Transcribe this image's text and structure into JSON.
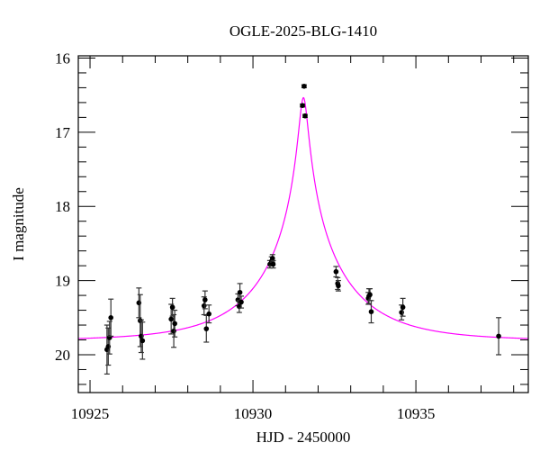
{
  "chart_data": {
    "type": "scatter",
    "title": "OGLE-2025-BLG-1410",
    "xlabel": "HJD - 2450000",
    "ylabel": "I magnitude",
    "xlim": [
      10924.64,
      10938.45
    ],
    "ylim": [
      20.51,
      15.97
    ],
    "y_inverted": true,
    "x_ticks": [
      10925,
      10930,
      10935
    ],
    "x_tick_labels": [
      "10925",
      "10930",
      "10935"
    ],
    "x_minor_step": 1,
    "y_ticks": [
      16,
      17,
      18,
      19,
      20
    ],
    "y_tick_labels": [
      "16",
      "17",
      "18",
      "19",
      "20"
    ],
    "y_minor_step": 0.2,
    "grid": false,
    "colors": {
      "data": "#000000",
      "model": "#ff00ff"
    },
    "points": [
      {
        "x": 10925.52,
        "y": 19.93,
        "err": 0.33
      },
      {
        "x": 10925.56,
        "y": 19.89,
        "err": 0.25
      },
      {
        "x": 10925.6,
        "y": 19.77,
        "err": 0.22
      },
      {
        "x": 10925.64,
        "y": 19.5,
        "err": 0.25
      },
      {
        "x": 10926.5,
        "y": 19.3,
        "err": 0.2
      },
      {
        "x": 10926.54,
        "y": 19.54,
        "err": 0.35
      },
      {
        "x": 10926.57,
        "y": 19.75,
        "err": 0.22
      },
      {
        "x": 10926.61,
        "y": 19.81,
        "err": 0.25
      },
      {
        "x": 10927.49,
        "y": 19.52,
        "err": 0.2
      },
      {
        "x": 10927.53,
        "y": 19.36,
        "err": 0.12
      },
      {
        "x": 10927.57,
        "y": 19.68,
        "err": 0.22
      },
      {
        "x": 10927.6,
        "y": 19.58,
        "err": 0.18
      },
      {
        "x": 10928.5,
        "y": 19.34,
        "err": 0.12
      },
      {
        "x": 10928.53,
        "y": 19.26,
        "err": 0.12
      },
      {
        "x": 10928.57,
        "y": 19.65,
        "err": 0.18
      },
      {
        "x": 10928.65,
        "y": 19.45,
        "err": 0.12
      },
      {
        "x": 10929.54,
        "y": 19.26,
        "err": 0.08
      },
      {
        "x": 10929.58,
        "y": 19.35,
        "err": 0.08
      },
      {
        "x": 10929.6,
        "y": 19.16,
        "err": 0.12
      },
      {
        "x": 10929.64,
        "y": 19.29,
        "err": 0.08
      },
      {
        "x": 10930.52,
        "y": 18.78,
        "err": 0.05
      },
      {
        "x": 10930.57,
        "y": 18.74,
        "err": 0.06
      },
      {
        "x": 10930.6,
        "y": 18.7,
        "err": 0.05
      },
      {
        "x": 10930.62,
        "y": 18.78,
        "err": 0.05
      },
      {
        "x": 10931.52,
        "y": 16.64,
        "err": 0.02
      },
      {
        "x": 10931.57,
        "y": 16.38,
        "err": 0.02
      },
      {
        "x": 10931.6,
        "y": 16.78,
        "err": 0.02
      },
      {
        "x": 10932.55,
        "y": 18.88,
        "err": 0.07
      },
      {
        "x": 10932.6,
        "y": 19.04,
        "err": 0.08
      },
      {
        "x": 10932.62,
        "y": 19.07,
        "err": 0.07
      },
      {
        "x": 10933.54,
        "y": 19.24,
        "err": 0.08
      },
      {
        "x": 10933.56,
        "y": 19.21,
        "err": 0.1
      },
      {
        "x": 10933.59,
        "y": 19.19,
        "err": 0.08
      },
      {
        "x": 10933.63,
        "y": 19.42,
        "err": 0.15
      },
      {
        "x": 10934.56,
        "y": 19.43,
        "err": 0.1
      },
      {
        "x": 10934.6,
        "y": 19.36,
        "err": 0.12
      },
      {
        "x": 10937.54,
        "y": 19.75,
        "err": 0.25
      }
    ],
    "model": {
      "type": "point-lens",
      "t0": 10931.55,
      "tE": 2.64,
      "u0": 0.049,
      "baseline_mag": 19.81
    }
  }
}
